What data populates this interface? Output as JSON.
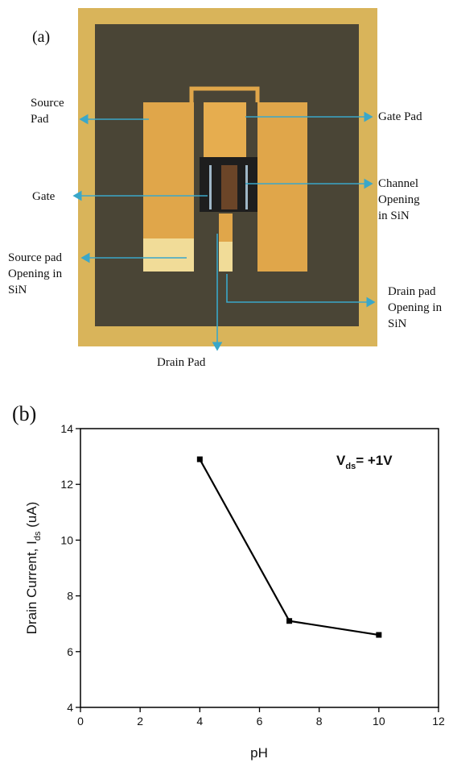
{
  "panel_a": {
    "tag": "(a)",
    "labels": [
      {
        "lines": [
          "Source",
          "Pad"
        ]
      },
      {
        "lines": [
          "Gate Pad"
        ]
      },
      {
        "lines": [
          "Gate"
        ]
      },
      {
        "lines": [
          "Channel",
          "Opening",
          "in SiN"
        ]
      },
      {
        "lines": [
          "Source pad",
          "Opening in",
          "SiN"
        ]
      },
      {
        "lines": [
          "Drain pad",
          "Opening in",
          "SiN"
        ]
      },
      {
        "lines": [
          "Drain Pad"
        ]
      }
    ]
  },
  "chart_data": {
    "type": "line",
    "tag": "(b)",
    "x_label": "pH",
    "y_label": {
      "main": "Drain Current, I",
      "sub": "ds",
      "unit": " (uA)"
    },
    "annotation": {
      "main": "V",
      "sub": "ds",
      "rest": "= +1V"
    },
    "x": [
      4,
      7,
      10
    ],
    "series": [
      {
        "color": "#000000",
        "values": [
          12.9,
          7.1,
          6.6
        ]
      }
    ],
    "xlim": [
      0,
      12
    ],
    "xticks": [
      0,
      2,
      4,
      6,
      8,
      10,
      12
    ],
    "ylim": [
      4,
      14
    ],
    "yticks": [
      4,
      6,
      8,
      10,
      12,
      14
    ]
  }
}
